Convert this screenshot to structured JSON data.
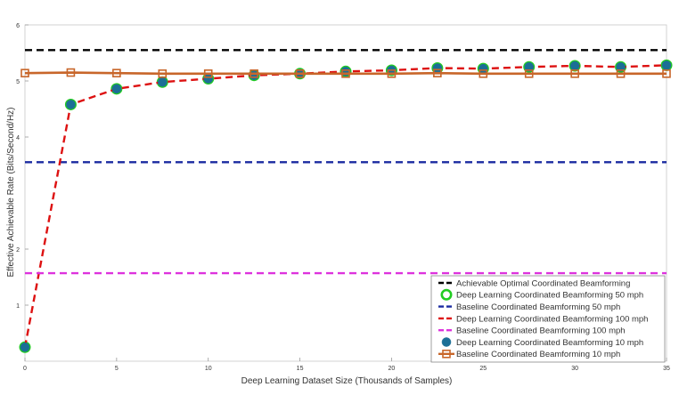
{
  "chart_data": {
    "type": "line",
    "xlabel": "Deep Learning Dataset Size (Thousands of Samples)",
    "ylabel": "Effective Achievable Rate (Bits/Second/Hz)",
    "xlim": [
      0,
      35
    ],
    "ylim": [
      0,
      6
    ],
    "xticks": [
      "0",
      "5",
      "10",
      "15",
      "20",
      "25",
      "30",
      "35"
    ],
    "yticks": [
      "1",
      "2",
      "4",
      "5",
      "6"
    ],
    "grid": false,
    "legend_position": "bottom-right",
    "colors": {
      "black": "#000000",
      "green": "#22cc22",
      "blue": "#1a2aa0",
      "red": "#dd1111",
      "magenta": "#dd33dd",
      "teal": "#1c6f96",
      "brown": "#c8662a"
    },
    "series": [
      {
        "name": "Achievable Optimal Coordinated Beamforming",
        "color": "#000000",
        "style": "dashed",
        "marker": "none",
        "x": [
          0,
          35
        ],
        "y": [
          5.55,
          5.55
        ]
      },
      {
        "name": "Deep Learning Coordinated Beamforming 50 mph",
        "color": "#22cc22",
        "style": "none",
        "marker": "circle",
        "x": [
          0,
          2.5,
          5,
          7.5,
          10,
          12.5,
          15,
          17.5,
          20,
          22.5,
          25,
          27.5,
          30,
          32.5,
          35
        ],
        "y": [
          0.25,
          4.58,
          4.86,
          4.98,
          5.04,
          5.1,
          5.13,
          5.17,
          5.19,
          5.23,
          5.22,
          5.25,
          5.27,
          5.25,
          5.28
        ]
      },
      {
        "name": "Baseline Coordinated Beamforming 50 mph",
        "color": "#1a2aa0",
        "style": "dashed",
        "marker": "none",
        "x": [
          0,
          35
        ],
        "y": [
          3.55,
          3.55
        ]
      },
      {
        "name": "Deep Learning Coordinated Beamforming 100 mph",
        "color": "#dd1111",
        "style": "dashed",
        "marker": "none",
        "x": [
          0,
          2.5,
          5,
          7.5,
          10,
          12.5,
          15,
          17.5,
          20,
          22.5,
          25,
          27.5,
          30,
          32.5,
          35
        ],
        "y": [
          0.25,
          4.58,
          4.86,
          4.98,
          5.04,
          5.1,
          5.13,
          5.17,
          5.19,
          5.23,
          5.22,
          5.25,
          5.27,
          5.25,
          5.28
        ]
      },
      {
        "name": "Baseline Coordinated Beamforming 100 mph",
        "color": "#dd33dd",
        "style": "dashed",
        "marker": "none",
        "x": [
          0,
          35
        ],
        "y": [
          1.57,
          1.57
        ]
      },
      {
        "name": "Deep Learning Coordinated Beamforming 10 mph",
        "color": "#1c6f96",
        "style": "none",
        "marker": "asterisk",
        "x": [
          0,
          2.5,
          5,
          7.5,
          10,
          12.5,
          15,
          17.5,
          20,
          22.5,
          25,
          27.5,
          30,
          32.5,
          35
        ],
        "y": [
          0.25,
          4.58,
          4.86,
          4.98,
          5.04,
          5.1,
          5.13,
          5.17,
          5.19,
          5.23,
          5.22,
          5.25,
          5.27,
          5.25,
          5.28
        ]
      },
      {
        "name": "Baseline Coordinated Beamforming 10 mph",
        "color": "#c8662a",
        "style": "solid",
        "marker": "square",
        "x": [
          0,
          2.5,
          5,
          7.5,
          10,
          12.5,
          15,
          17.5,
          20,
          22.5,
          25,
          27.5,
          30,
          32.5,
          35
        ],
        "y": [
          5.14,
          5.15,
          5.14,
          5.13,
          5.13,
          5.13,
          5.13,
          5.13,
          5.13,
          5.14,
          5.13,
          5.13,
          5.13,
          5.13,
          5.13
        ]
      }
    ]
  }
}
